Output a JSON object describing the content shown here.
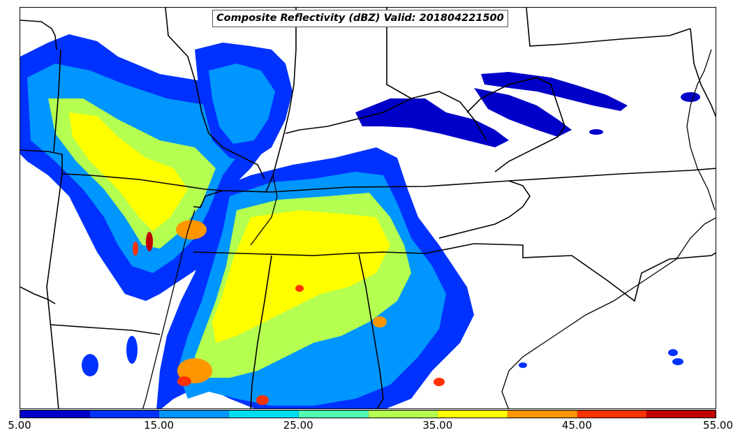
{
  "title": "Composite Reflectivity (dBZ) Valid: 201804221500",
  "colorbar": {
    "colors": [
      "#0000c8",
      "#0032ff",
      "#0096ff",
      "#00dcf0",
      "#50ffb4",
      "#b4ff50",
      "#ffff00",
      "#ff9600",
      "#ff3200",
      "#be0000"
    ],
    "ticks": [
      "5.00",
      "15.00",
      "25.00",
      "35.00",
      "45.00",
      "55.00"
    ],
    "min": 5,
    "max": 55
  },
  "map": {
    "background": "#ffffff",
    "boundary_color": "#000000"
  }
}
